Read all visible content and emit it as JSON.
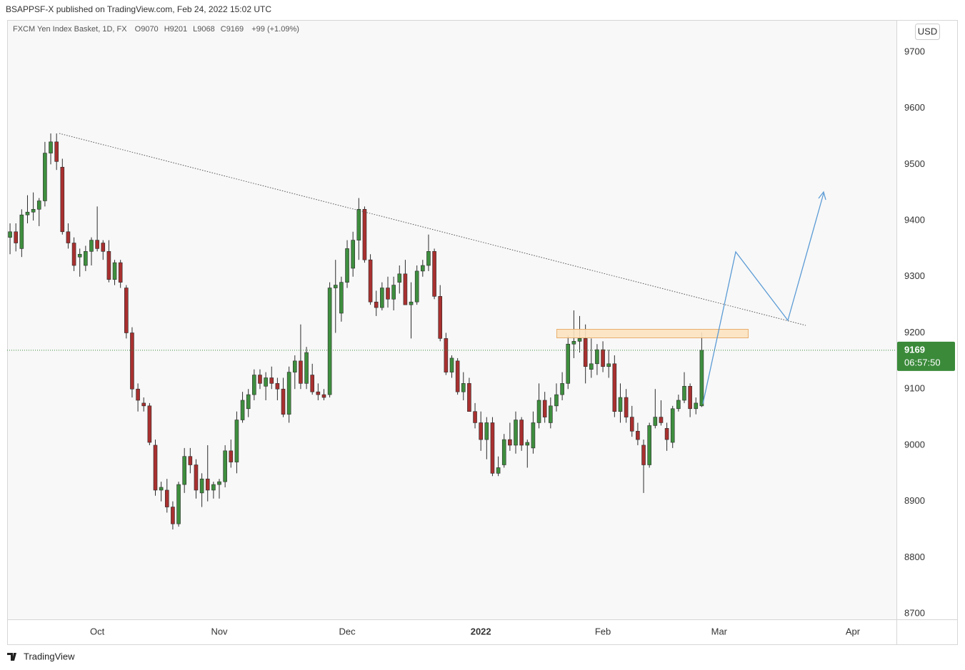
{
  "header": {
    "text": "BSAPPSF-X published on TradingView.com, Feb 24, 2022 15:02 UTC"
  },
  "footer": {
    "brand": "TradingView"
  },
  "chart_data": {
    "type": "candlestick",
    "title": "FXCM Yen Index Basket, 1D, FX",
    "ohlc_labels": [
      "O",
      "H",
      "L",
      "C"
    ],
    "change": "+99 (+1.09%)",
    "currency": "USD",
    "countdown": "06:57:50",
    "up_color": "#3e8e3e",
    "down_color": "#a8302f",
    "wick_color": "#2b2b2b",
    "last_price_color": "#3a8a3a",
    "grid": false,
    "ylim": [
      8690,
      9757
    ],
    "yticks": [
      8700,
      8800,
      8900,
      9000,
      9100,
      9200,
      9300,
      9400,
      9500,
      9600,
      9700
    ],
    "categories": [
      null,
      null,
      null,
      null,
      null,
      null,
      null,
      null,
      null,
      null,
      null,
      null,
      null,
      null,
      null,
      "Oct",
      null,
      null,
      null,
      null,
      null,
      null,
      null,
      null,
      null,
      null,
      null,
      null,
      null,
      null,
      null,
      null,
      null,
      null,
      null,
      null,
      "Nov",
      null,
      null,
      null,
      null,
      null,
      null,
      null,
      null,
      null,
      null,
      null,
      null,
      null,
      null,
      null,
      null,
      null,
      null,
      null,
      null,
      null,
      "Dec",
      null,
      null,
      null,
      null,
      null,
      null,
      null,
      null,
      null,
      null,
      null,
      null,
      null,
      null,
      null,
      null,
      null,
      null,
      null,
      null,
      null,
      null,
      "2022",
      null,
      null,
      null,
      null,
      null,
      null,
      null,
      null,
      null,
      null,
      null,
      null,
      null,
      null,
      null,
      null,
      null,
      null,
      null,
      null,
      "Feb",
      null,
      null,
      null,
      null,
      null,
      null,
      null,
      null,
      null,
      null,
      null,
      null,
      null,
      null,
      null,
      null,
      null,
      null,
      null,
      "Mar",
      null,
      null,
      null,
      null,
      null,
      null,
      null,
      null,
      null,
      null,
      null,
      null,
      null,
      null,
      null,
      null,
      null,
      null,
      null,
      null,
      null,
      null,
      "Apr",
      null,
      null,
      null,
      null,
      null,
      null,
      null
    ],
    "open": [
      9370,
      9380,
      9350,
      9410,
      9415,
      9420,
      9435,
      9520,
      9540,
      9495,
      9380,
      9360,
      9335,
      9320,
      9345,
      9365,
      9360,
      9345,
      9295,
      9325,
      9280,
      9200,
      9100,
      9075,
      9070,
      9000,
      8920,
      8920,
      8890,
      8860,
      8930,
      8980,
      8965,
      8915,
      8940,
      8920,
      8930,
      8935,
      8990,
      8970,
      9045,
      9065,
      9090,
      9125,
      9105,
      9120,
      9110,
      9100,
      9055,
      9130,
      9150,
      9110,
      9125,
      9095,
      9090,
      9090,
      9280,
      9235,
      9290,
      9315,
      9365,
      9420,
      9330,
      9255,
      9245,
      9280,
      9260,
      9290,
      9305,
      9250,
      9255,
      9310,
      9320,
      9345,
      9265,
      9190,
      9130,
      9150,
      9095,
      9110,
      9060,
      9040,
      9010,
      9040,
      8950,
      8965,
      9010,
      9000,
      9045,
      9000,
      8995,
      9040,
      9080,
      9040,
      9070,
      9090,
      9110,
      9180,
      9185,
      9190,
      9135,
      9145,
      9170,
      9140,
      9145,
      9060,
      9085,
      9050,
      9025,
      9000,
      8965,
      9035,
      9050,
      9030,
      9005,
      9065,
      9080,
      9105,
      9065,
      9070,
      null,
      null,
      null,
      null,
      null,
      null,
      null,
      null,
      null,
      null,
      null,
      null,
      null,
      null,
      null,
      null,
      null,
      null,
      null,
      null,
      null,
      null,
      null,
      null,
      null,
      null,
      null,
      null,
      null,
      null,
      null,
      null,
      null
    ],
    "high": [
      9395,
      9395,
      9420,
      9445,
      9450,
      9440,
      9540,
      9555,
      9555,
      9510,
      9395,
      9370,
      9350,
      9355,
      9370,
      9425,
      9365,
      9365,
      9330,
      9330,
      9285,
      9210,
      9110,
      9085,
      9075,
      9010,
      8935,
      8940,
      8900,
      8935,
      8995,
      8995,
      8975,
      8950,
      9000,
      8935,
      8940,
      9000,
      9010,
      9060,
      9095,
      9100,
      9135,
      9135,
      9130,
      9140,
      9120,
      9120,
      9140,
      9160,
      9215,
      9175,
      9145,
      9110,
      9100,
      9290,
      9330,
      9300,
      9365,
      9380,
      9440,
      9425,
      9340,
      9275,
      9290,
      9300,
      9300,
      9320,
      9330,
      9290,
      9320,
      9330,
      9375,
      9350,
      9285,
      9200,
      9160,
      9155,
      9130,
      9120,
      9075,
      9060,
      9050,
      9050,
      8980,
      9020,
      9040,
      9060,
      9050,
      9010,
      9060,
      9110,
      9095,
      9085,
      9110,
      9130,
      9195,
      9240,
      9230,
      9215,
      9190,
      9180,
      9185,
      9170,
      9160,
      9110,
      9100,
      9070,
      9040,
      9010,
      9040,
      9100,
      9080,
      9040,
      9070,
      9090,
      9130,
      9110,
      9085,
      9201,
      null,
      null,
      null,
      null,
      null,
      null,
      null,
      null,
      null,
      null,
      null,
      null,
      null,
      null,
      null,
      null,
      null,
      null,
      null,
      null,
      null,
      null,
      null,
      null,
      null,
      null,
      null,
      null,
      null,
      null,
      null,
      null,
      null
    ],
    "low": [
      9340,
      9345,
      9335,
      9395,
      9400,
      9390,
      9425,
      9500,
      9490,
      9375,
      9350,
      9310,
      9300,
      9310,
      9320,
      9345,
      9330,
      9290,
      9285,
      9280,
      9190,
      9085,
      9060,
      9060,
      9000,
      8910,
      8900,
      8880,
      8850,
      8855,
      8915,
      8950,
      8905,
      8890,
      8900,
      8905,
      8905,
      8925,
      8960,
      8950,
      9040,
      9050,
      9080,
      9100,
      9080,
      9100,
      9080,
      9050,
      9040,
      9100,
      9100,
      9100,
      9090,
      9080,
      9080,
      9085,
      9200,
      9220,
      9280,
      9300,
      9330,
      9325,
      9250,
      9230,
      9240,
      9245,
      9240,
      9270,
      9250,
      9190,
      9250,
      9300,
      9310,
      9260,
      9185,
      9125,
      9120,
      9090,
      9080,
      9060,
      9030,
      8990,
      8975,
      8945,
      8945,
      8960,
      8990,
      8985,
      8990,
      8960,
      8985,
      9030,
      9040,
      9030,
      9060,
      9080,
      9100,
      9155,
      9165,
      9110,
      9120,
      9125,
      9130,
      9120,
      9050,
      9040,
      9040,
      9015,
      9000,
      8915,
      8960,
      9030,
      9035,
      8990,
      8995,
      9060,
      9075,
      9050,
      9055,
      9068,
      null,
      null,
      null,
      null,
      null,
      null,
      null,
      null,
      null,
      null,
      null,
      null,
      null,
      null,
      null,
      null,
      null,
      null,
      null,
      null,
      null,
      null,
      null,
      null,
      null,
      null,
      null,
      null,
      null,
      null,
      null,
      null,
      null
    ],
    "close": [
      9380,
      9360,
      9410,
      9415,
      9420,
      9435,
      9520,
      9540,
      9505,
      9380,
      9360,
      9320,
      9340,
      9345,
      9365,
      9350,
      9345,
      9295,
      9325,
      9290,
      9200,
      9100,
      9080,
      9070,
      9005,
      8920,
      8925,
      8890,
      8860,
      8930,
      8980,
      8965,
      8920,
      8940,
      8920,
      8930,
      8935,
      8990,
      8970,
      9045,
      9080,
      9090,
      9125,
      9110,
      9120,
      9110,
      9100,
      9055,
      9130,
      9150,
      9110,
      9165,
      9095,
      9090,
      9085,
      9280,
      9285,
      9290,
      9350,
      9365,
      9420,
      9330,
      9255,
      9245,
      9280,
      9260,
      9285,
      9305,
      9250,
      9255,
      9310,
      9320,
      9345,
      9265,
      9190,
      9130,
      9155,
      9095,
      9110,
      9060,
      9040,
      9010,
      9040,
      8950,
      8960,
      9010,
      9000,
      9045,
      9000,
      9005,
      9040,
      9080,
      9050,
      9070,
      9090,
      9110,
      9180,
      9185,
      9190,
      9140,
      9145,
      9170,
      9140,
      9145,
      9060,
      9085,
      9050,
      9025,
      9010,
      8965,
      9035,
      9050,
      9040,
      9010,
      9065,
      9080,
      9105,
      9065,
      9075,
      9169,
      null,
      null,
      null,
      null,
      null,
      null,
      null,
      null,
      null,
      null,
      null,
      null,
      null,
      null,
      null,
      null,
      null,
      null,
      null,
      null,
      null,
      null,
      null,
      null,
      null,
      null,
      null,
      null,
      null,
      null,
      null,
      null,
      null
    ]
  }
}
